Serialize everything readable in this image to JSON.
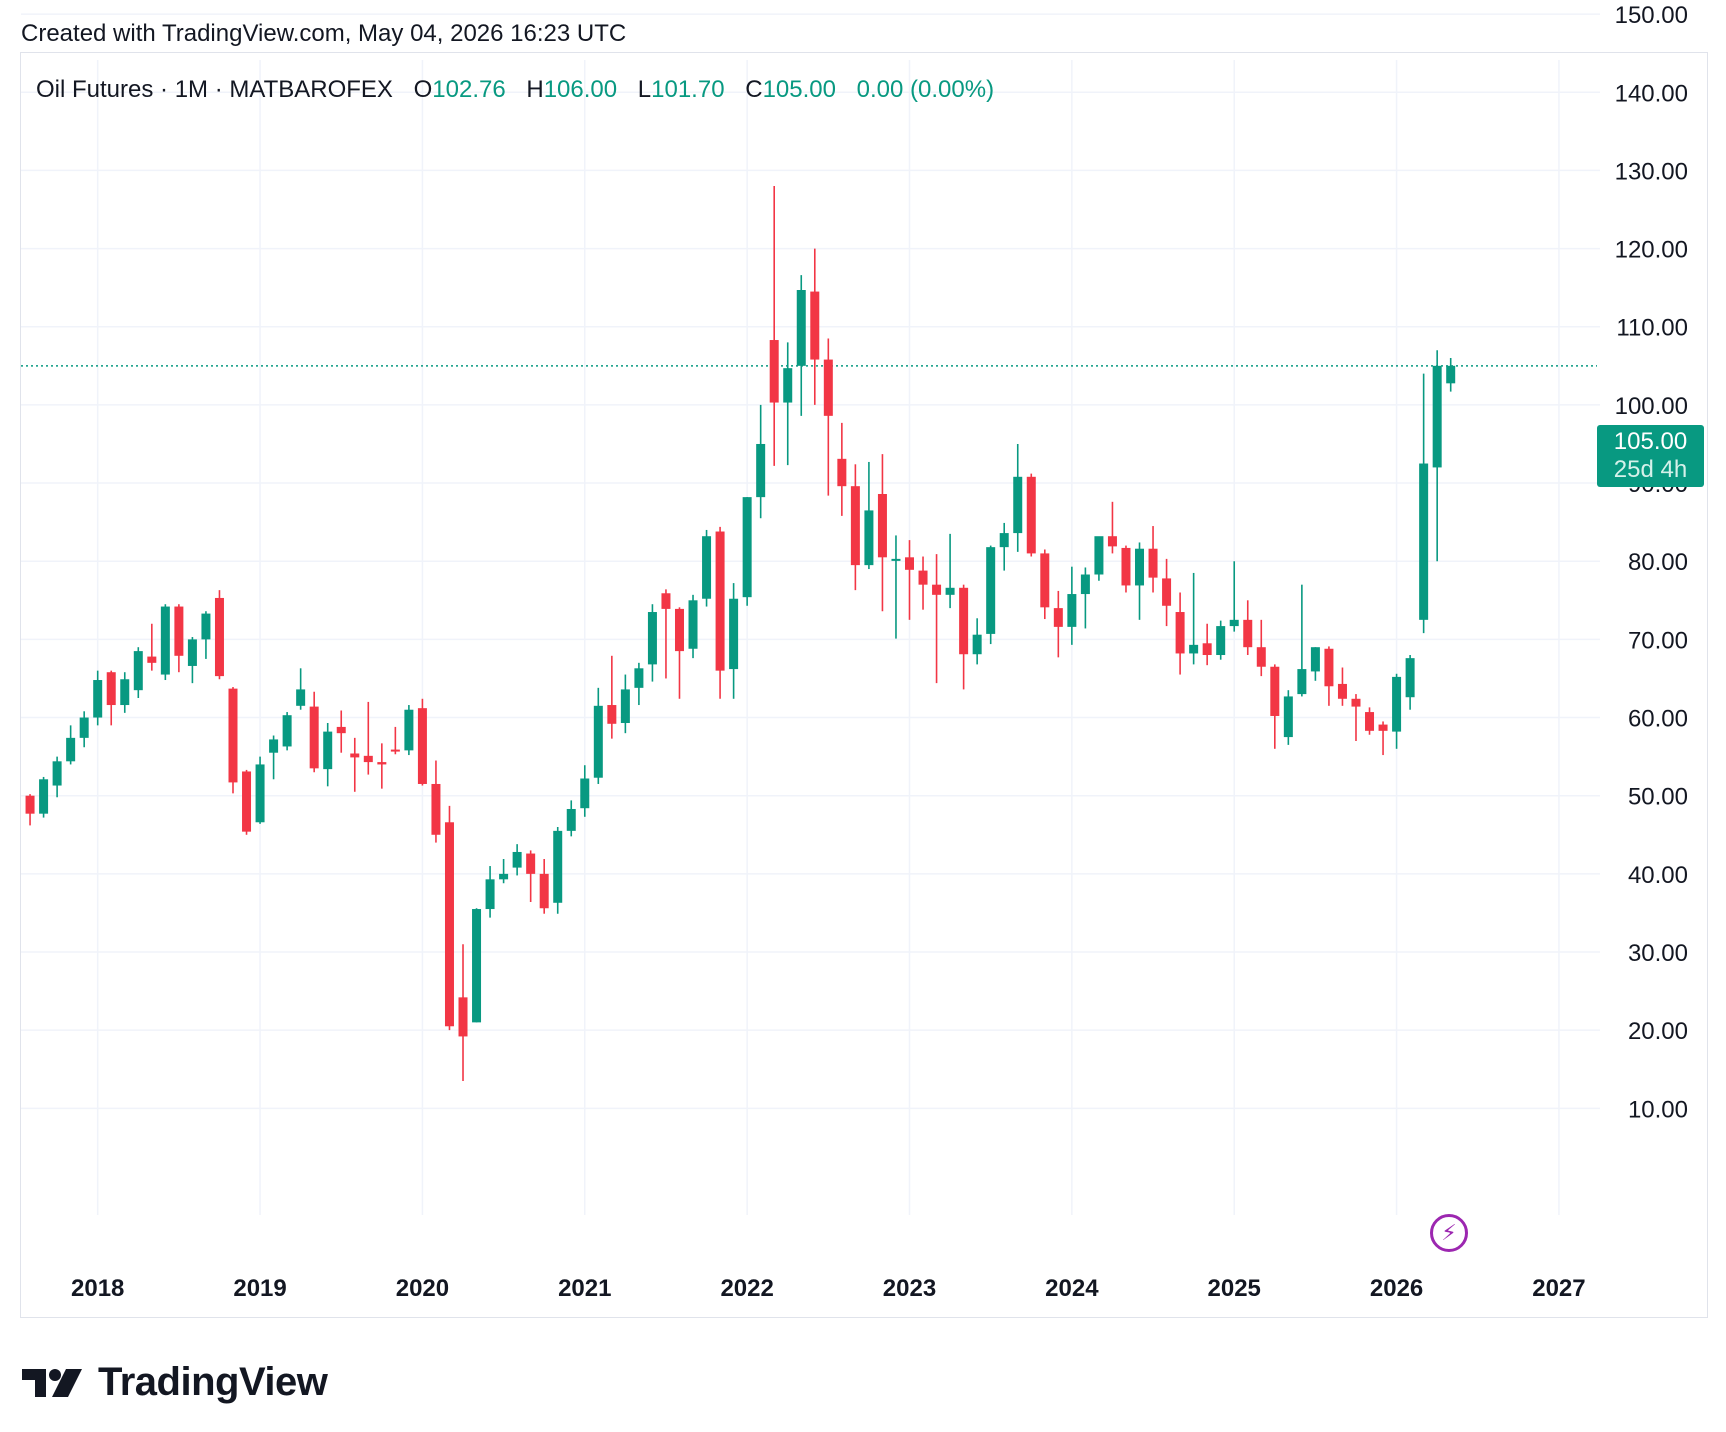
{
  "header": {
    "created_text": "Created with TradingView.com, May 04, 2026 16:23 UTC"
  },
  "legend": {
    "symbol": "Oil Futures · 1M · MATBAROFEX",
    "o_label": "O",
    "o_value": "102.76",
    "h_label": "H",
    "h_value": "106.00",
    "l_label": "L",
    "l_value": "101.70",
    "c_label": "C",
    "c_value": "105.00",
    "change": "0.00 (0.00%)"
  },
  "price_badge": {
    "price": "105.00",
    "countdown": "25d 4h"
  },
  "footer": {
    "logo_text": "TradingView"
  },
  "colors": {
    "up": "#089981",
    "down": "#f23645",
    "grid": "#f0f3fa",
    "text": "#131722",
    "current_line": "#089981",
    "lightning": "#9c27b0"
  },
  "icons": {
    "lightning": "lightning-icon",
    "logo": "tradingview-logo-icon"
  },
  "chart_data": {
    "type": "candlestick",
    "interval": "1M",
    "y_axis": {
      "ticks": [
        "10.00",
        "20.00",
        "30.00",
        "40.00",
        "50.00",
        "60.00",
        "70.00",
        "80.00",
        "90.00",
        "100.00",
        "110.00",
        "120.00",
        "130.00",
        "140.00",
        "150.00"
      ],
      "scale": "linear",
      "position": "right"
    },
    "x_axis": {
      "labels": [
        "2018",
        "2019",
        "2020",
        "2021",
        "2022",
        "2023",
        "2024",
        "2025",
        "2026",
        "2027"
      ]
    },
    "current_price": 105.0,
    "grid": true,
    "candles": [
      {
        "date": "2017-08",
        "o": 50.0,
        "h": 50.2,
        "l": 46.2,
        "c": 47.7
      },
      {
        "date": "2017-09",
        "o": 47.7,
        "h": 52.4,
        "l": 47.2,
        "c": 52.1
      },
      {
        "date": "2017-10",
        "o": 51.3,
        "h": 55.0,
        "l": 49.8,
        "c": 54.4
      },
      {
        "date": "2017-11",
        "o": 54.4,
        "h": 59.0,
        "l": 54.0,
        "c": 57.4
      },
      {
        "date": "2017-12",
        "o": 57.4,
        "h": 60.8,
        "l": 56.2,
        "c": 60.0
      },
      {
        "date": "2018-01",
        "o": 60.0,
        "h": 66.0,
        "l": 59.0,
        "c": 64.8
      },
      {
        "date": "2018-02",
        "o": 65.8,
        "h": 66.0,
        "l": 59.0,
        "c": 61.6
      },
      {
        "date": "2018-03",
        "o": 61.6,
        "h": 65.8,
        "l": 60.6,
        "c": 64.9
      },
      {
        "date": "2018-04",
        "o": 63.5,
        "h": 69.0,
        "l": 62.5,
        "c": 68.5
      },
      {
        "date": "2018-05",
        "o": 67.8,
        "h": 72.0,
        "l": 66.0,
        "c": 67.0
      },
      {
        "date": "2018-06",
        "o": 65.5,
        "h": 74.5,
        "l": 64.8,
        "c": 74.2
      },
      {
        "date": "2018-07",
        "o": 74.2,
        "h": 74.5,
        "l": 65.8,
        "c": 67.9
      },
      {
        "date": "2018-08",
        "o": 66.6,
        "h": 70.3,
        "l": 64.4,
        "c": 70.0
      },
      {
        "date": "2018-09",
        "o": 70.0,
        "h": 73.6,
        "l": 67.5,
        "c": 73.3
      },
      {
        "date": "2018-10",
        "o": 75.3,
        "h": 76.3,
        "l": 64.9,
        "c": 65.3
      },
      {
        "date": "2018-11",
        "o": 63.7,
        "h": 63.9,
        "l": 50.3,
        "c": 51.7
      },
      {
        "date": "2018-12",
        "o": 53.1,
        "h": 53.3,
        "l": 45.0,
        "c": 45.4
      },
      {
        "date": "2019-01",
        "o": 46.6,
        "h": 55.0,
        "l": 46.4,
        "c": 54.0
      },
      {
        "date": "2019-02",
        "o": 55.5,
        "h": 57.7,
        "l": 52.1,
        "c": 57.2
      },
      {
        "date": "2019-03",
        "o": 56.3,
        "h": 60.7,
        "l": 55.8,
        "c": 60.3
      },
      {
        "date": "2019-04",
        "o": 61.5,
        "h": 66.3,
        "l": 61.0,
        "c": 63.6
      },
      {
        "date": "2019-05",
        "o": 61.4,
        "h": 63.3,
        "l": 53.0,
        "c": 53.5
      },
      {
        "date": "2019-06",
        "o": 53.4,
        "h": 59.3,
        "l": 51.2,
        "c": 58.2
      },
      {
        "date": "2019-07",
        "o": 58.8,
        "h": 60.9,
        "l": 55.5,
        "c": 58.0
      },
      {
        "date": "2019-08",
        "o": 55.4,
        "h": 57.4,
        "l": 50.5,
        "c": 54.9
      },
      {
        "date": "2019-09",
        "o": 55.1,
        "h": 62.0,
        "l": 52.7,
        "c": 54.3
      },
      {
        "date": "2019-10",
        "o": 54.3,
        "h": 56.7,
        "l": 50.9,
        "c": 54.0
      },
      {
        "date": "2019-11",
        "o": 55.9,
        "h": 58.8,
        "l": 55.3,
        "c": 55.8
      },
      {
        "date": "2019-12",
        "o": 55.8,
        "h": 61.6,
        "l": 55.2,
        "c": 61.0
      },
      {
        "date": "2020-01",
        "o": 61.2,
        "h": 62.4,
        "l": 51.3,
        "c": 51.5
      },
      {
        "date": "2020-02",
        "o": 51.5,
        "h": 54.5,
        "l": 44.0,
        "c": 45.0
      },
      {
        "date": "2020-03",
        "o": 46.6,
        "h": 48.7,
        "l": 20.0,
        "c": 20.5
      },
      {
        "date": "2020-04",
        "o": 24.2,
        "h": 31.0,
        "l": 13.5,
        "c": 19.2
      },
      {
        "date": "2020-05",
        "o": 21.0,
        "h": 35.6,
        "l": 21.0,
        "c": 35.5
      },
      {
        "date": "2020-06",
        "o": 35.5,
        "h": 41.0,
        "l": 34.4,
        "c": 39.3
      },
      {
        "date": "2020-07",
        "o": 39.3,
        "h": 41.9,
        "l": 38.8,
        "c": 40.0
      },
      {
        "date": "2020-08",
        "o": 40.8,
        "h": 43.8,
        "l": 39.8,
        "c": 42.8
      },
      {
        "date": "2020-09",
        "o": 42.6,
        "h": 43.0,
        "l": 36.4,
        "c": 40.0
      },
      {
        "date": "2020-10",
        "o": 40.0,
        "h": 41.9,
        "l": 34.9,
        "c": 35.6
      },
      {
        "date": "2020-11",
        "o": 36.3,
        "h": 46.0,
        "l": 34.9,
        "c": 45.5
      },
      {
        "date": "2020-12",
        "o": 45.5,
        "h": 49.4,
        "l": 44.8,
        "c": 48.3
      },
      {
        "date": "2021-01",
        "o": 48.4,
        "h": 53.9,
        "l": 47.3,
        "c": 52.2
      },
      {
        "date": "2021-02",
        "o": 52.3,
        "h": 63.8,
        "l": 51.5,
        "c": 61.5
      },
      {
        "date": "2021-03",
        "o": 61.6,
        "h": 67.9,
        "l": 57.3,
        "c": 59.2
      },
      {
        "date": "2021-04",
        "o": 59.3,
        "h": 65.5,
        "l": 58.0,
        "c": 63.6
      },
      {
        "date": "2021-05",
        "o": 63.8,
        "h": 67.0,
        "l": 61.6,
        "c": 66.3
      },
      {
        "date": "2021-06",
        "o": 66.8,
        "h": 74.5,
        "l": 64.6,
        "c": 73.5
      },
      {
        "date": "2021-07",
        "o": 75.9,
        "h": 76.4,
        "l": 65.0,
        "c": 73.9
      },
      {
        "date": "2021-08",
        "o": 73.9,
        "h": 74.1,
        "l": 62.4,
        "c": 68.5
      },
      {
        "date": "2021-09",
        "o": 68.8,
        "h": 75.7,
        "l": 67.6,
        "c": 75.0
      },
      {
        "date": "2021-10",
        "o": 75.2,
        "h": 84.0,
        "l": 74.2,
        "c": 83.2
      },
      {
        "date": "2021-11",
        "o": 83.8,
        "h": 84.4,
        "l": 62.4,
        "c": 66.0
      },
      {
        "date": "2021-12",
        "o": 66.2,
        "h": 77.2,
        "l": 62.4,
        "c": 75.2
      },
      {
        "date": "2022-01",
        "o": 75.4,
        "h": 88.2,
        "l": 74.3,
        "c": 88.2
      },
      {
        "date": "2022-02",
        "o": 88.2,
        "h": 100.0,
        "l": 85.5,
        "c": 95.0
      },
      {
        "date": "2022-03",
        "o": 108.3,
        "h": 128.0,
        "l": 92.2,
        "c": 100.3
      },
      {
        "date": "2022-04",
        "o": 100.3,
        "h": 108.0,
        "l": 92.3,
        "c": 104.7
      },
      {
        "date": "2022-05",
        "o": 105.0,
        "h": 116.6,
        "l": 98.6,
        "c": 114.7
      },
      {
        "date": "2022-06",
        "o": 114.5,
        "h": 120.0,
        "l": 100.0,
        "c": 105.8
      },
      {
        "date": "2022-07",
        "o": 105.8,
        "h": 108.5,
        "l": 88.4,
        "c": 98.6
      },
      {
        "date": "2022-08",
        "o": 93.1,
        "h": 97.7,
        "l": 85.8,
        "c": 89.6
      },
      {
        "date": "2022-09",
        "o": 89.6,
        "h": 92.4,
        "l": 76.3,
        "c": 79.5
      },
      {
        "date": "2022-10",
        "o": 79.5,
        "h": 92.7,
        "l": 79.0,
        "c": 86.5
      },
      {
        "date": "2022-11",
        "o": 88.6,
        "h": 93.7,
        "l": 73.6,
        "c": 80.5
      },
      {
        "date": "2022-12",
        "o": 80.2,
        "h": 83.3,
        "l": 70.1,
        "c": 80.3
      },
      {
        "date": "2023-01",
        "o": 80.5,
        "h": 82.7,
        "l": 72.5,
        "c": 78.9
      },
      {
        "date": "2023-02",
        "o": 78.8,
        "h": 80.6,
        "l": 73.8,
        "c": 77.0
      },
      {
        "date": "2023-03",
        "o": 77.0,
        "h": 80.9,
        "l": 64.4,
        "c": 75.7
      },
      {
        "date": "2023-04",
        "o": 75.7,
        "h": 83.5,
        "l": 74.0,
        "c": 76.6
      },
      {
        "date": "2023-05",
        "o": 76.6,
        "h": 77.0,
        "l": 63.6,
        "c": 68.1
      },
      {
        "date": "2023-06",
        "o": 68.1,
        "h": 72.7,
        "l": 66.8,
        "c": 70.6
      },
      {
        "date": "2023-07",
        "o": 70.7,
        "h": 82.0,
        "l": 69.4,
        "c": 81.8
      },
      {
        "date": "2023-08",
        "o": 81.8,
        "h": 84.9,
        "l": 78.8,
        "c": 83.6
      },
      {
        "date": "2023-09",
        "o": 83.6,
        "h": 95.0,
        "l": 81.2,
        "c": 90.8
      },
      {
        "date": "2023-10",
        "o": 90.8,
        "h": 91.2,
        "l": 80.6,
        "c": 81.0
      },
      {
        "date": "2023-11",
        "o": 81.0,
        "h": 81.5,
        "l": 72.6,
        "c": 74.1
      },
      {
        "date": "2023-12",
        "o": 74.0,
        "h": 76.2,
        "l": 67.7,
        "c": 71.6
      },
      {
        "date": "2024-01",
        "o": 71.6,
        "h": 79.3,
        "l": 69.3,
        "c": 75.8
      },
      {
        "date": "2024-02",
        "o": 75.8,
        "h": 79.2,
        "l": 71.4,
        "c": 78.3
      },
      {
        "date": "2024-03",
        "o": 78.3,
        "h": 83.1,
        "l": 77.5,
        "c": 83.2
      },
      {
        "date": "2024-04",
        "o": 83.2,
        "h": 87.6,
        "l": 81.0,
        "c": 81.9
      },
      {
        "date": "2024-05",
        "o": 81.7,
        "h": 82.0,
        "l": 76.0,
        "c": 76.9
      },
      {
        "date": "2024-06",
        "o": 76.9,
        "h": 82.4,
        "l": 72.5,
        "c": 81.6
      },
      {
        "date": "2024-07",
        "o": 81.6,
        "h": 84.5,
        "l": 76.0,
        "c": 77.9
      },
      {
        "date": "2024-08",
        "o": 77.8,
        "h": 80.3,
        "l": 71.7,
        "c": 74.3
      },
      {
        "date": "2024-09",
        "o": 73.5,
        "h": 76.0,
        "l": 65.5,
        "c": 68.2
      },
      {
        "date": "2024-10",
        "o": 68.2,
        "h": 78.5,
        "l": 66.8,
        "c": 69.3
      },
      {
        "date": "2024-11",
        "o": 69.5,
        "h": 72.0,
        "l": 66.7,
        "c": 68.0
      },
      {
        "date": "2024-12",
        "o": 68.0,
        "h": 72.4,
        "l": 67.4,
        "c": 71.7
      },
      {
        "date": "2025-01",
        "o": 71.7,
        "h": 80.0,
        "l": 71.0,
        "c": 72.5
      },
      {
        "date": "2025-02",
        "o": 72.5,
        "h": 75.0,
        "l": 68.0,
        "c": 69.0
      },
      {
        "date": "2025-03",
        "o": 69.0,
        "h": 72.5,
        "l": 65.3,
        "c": 66.5
      },
      {
        "date": "2025-04",
        "o": 66.5,
        "h": 66.8,
        "l": 56.0,
        "c": 60.2
      },
      {
        "date": "2025-05",
        "o": 57.5,
        "h": 63.5,
        "l": 56.5,
        "c": 62.7
      },
      {
        "date": "2025-06",
        "o": 63.0,
        "h": 77.0,
        "l": 62.7,
        "c": 66.2
      },
      {
        "date": "2025-07",
        "o": 65.9,
        "h": 69.0,
        "l": 64.7,
        "c": 69.0
      },
      {
        "date": "2025-08",
        "o": 68.8,
        "h": 69.1,
        "l": 61.5,
        "c": 64.0
      },
      {
        "date": "2025-09",
        "o": 64.3,
        "h": 66.4,
        "l": 61.5,
        "c": 62.4
      },
      {
        "date": "2025-10",
        "o": 62.4,
        "h": 63.0,
        "l": 57.0,
        "c": 61.4
      },
      {
        "date": "2025-11",
        "o": 60.7,
        "h": 61.3,
        "l": 57.8,
        "c": 58.3
      },
      {
        "date": "2025-12",
        "o": 59.1,
        "h": 59.5,
        "l": 55.2,
        "c": 58.3
      },
      {
        "date": "2026-01",
        "o": 58.2,
        "h": 65.6,
        "l": 56.0,
        "c": 65.2
      },
      {
        "date": "2026-02",
        "o": 62.6,
        "h": 68.0,
        "l": 61.0,
        "c": 67.6
      },
      {
        "date": "2026-03",
        "o": 72.5,
        "h": 104.0,
        "l": 70.8,
        "c": 92.5
      },
      {
        "date": "2026-04",
        "o": 92.0,
        "h": 107.0,
        "l": 80.0,
        "c": 105.0
      },
      {
        "date": "2026-05",
        "o": 102.76,
        "h": 106.0,
        "l": 101.7,
        "c": 105.0
      }
    ]
  }
}
